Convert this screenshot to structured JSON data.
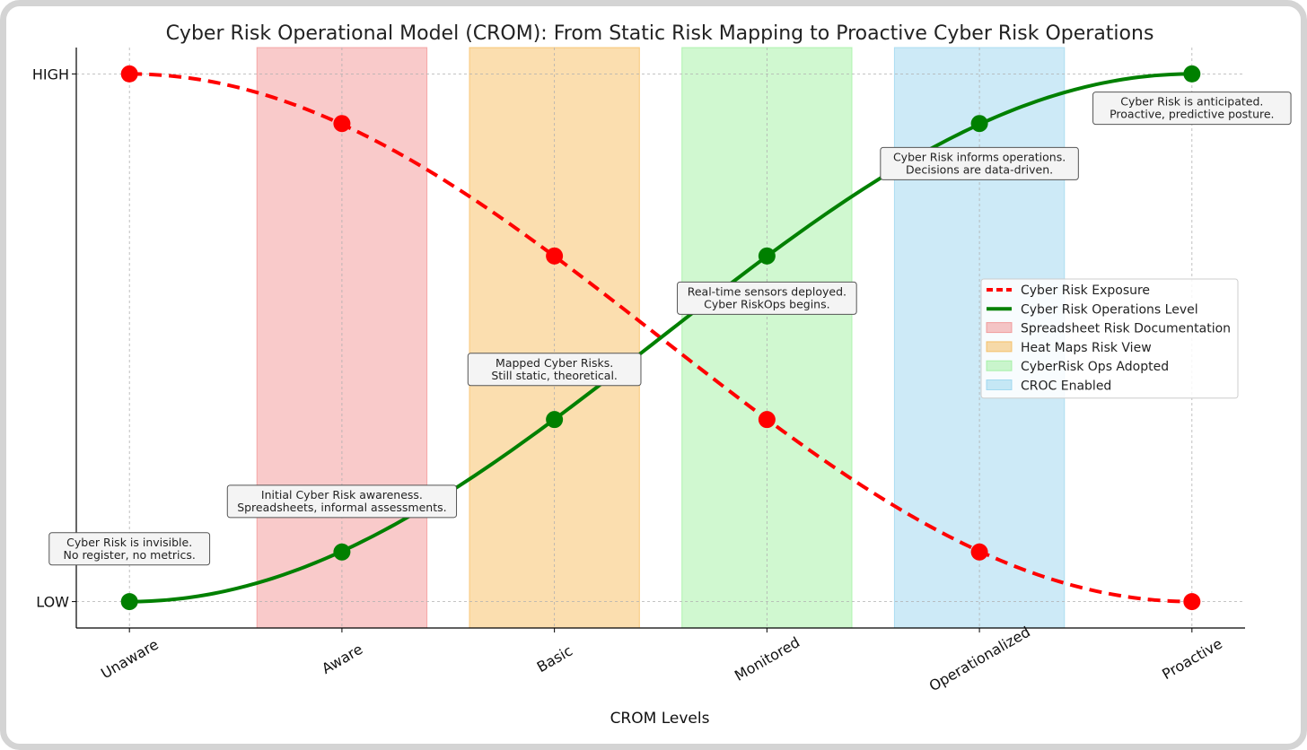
{
  "chart_data": {
    "type": "line",
    "title": "Cyber Risk Operational Model (CROM): From Static Risk Mapping to Proactive Cyber Risk Operations",
    "xlabel": "CROM Levels",
    "ylabel": "",
    "categories": [
      "Unaware",
      "Aware",
      "Basic",
      "Monitored",
      "Operationalized",
      "Proactive"
    ],
    "y_tick_labels": [
      {
        "value": 0,
        "label": "LOW"
      },
      {
        "value": 1,
        "label": "HIGH"
      }
    ],
    "ylim": [
      -0.05,
      1.05
    ],
    "grid": true,
    "legend_position": "center-right",
    "series": [
      {
        "name": "Cyber Risk Exposure",
        "style": "dashed",
        "color": "#ff0000",
        "values": [
          1.0,
          0.906,
          0.655,
          0.345,
          0.094,
          0.0
        ]
      },
      {
        "name": "Cyber Risk Operations Level",
        "style": "solid",
        "color": "#008000",
        "values": [
          0.0,
          0.094,
          0.345,
          0.655,
          0.906,
          1.0
        ]
      }
    ],
    "bands": [
      {
        "name": "Spreadsheet Risk Documentation",
        "range": [
          0.6,
          1.4
        ],
        "color": "#f08080"
      },
      {
        "name": "Heat Maps Risk View",
        "range": [
          1.6,
          2.4
        ],
        "color": "#f5b041"
      },
      {
        "name": "CyberRisk Ops Adopted",
        "range": [
          2.6,
          3.4
        ],
        "color": "#90ee90"
      },
      {
        "name": "CROC Enabled",
        "range": [
          3.6,
          4.4
        ],
        "color": "#87ceeb"
      }
    ],
    "annotations": [
      {
        "x": 0,
        "y": 0.1,
        "lines": [
          "Cyber Risk is invisible.",
          "No register, no metrics."
        ]
      },
      {
        "x": 1,
        "y": 0.19,
        "lines": [
          "Initial Cyber Risk awareness.",
          "Spreadsheets, informal assessments."
        ]
      },
      {
        "x": 2,
        "y": 0.44,
        "lines": [
          "Mapped Cyber Risks.",
          "Still static, theoretical."
        ]
      },
      {
        "x": 3,
        "y": 0.575,
        "lines": [
          "Real-time sensors deployed.",
          "Cyber RiskOps begins."
        ]
      },
      {
        "x": 4,
        "y": 0.83,
        "lines": [
          "Cyber Risk informs operations.",
          "Decisions are data-driven."
        ]
      },
      {
        "x": 5,
        "y": 0.935,
        "lines": [
          "Cyber Risk is anticipated.",
          "Proactive, predictive posture."
        ]
      }
    ]
  }
}
